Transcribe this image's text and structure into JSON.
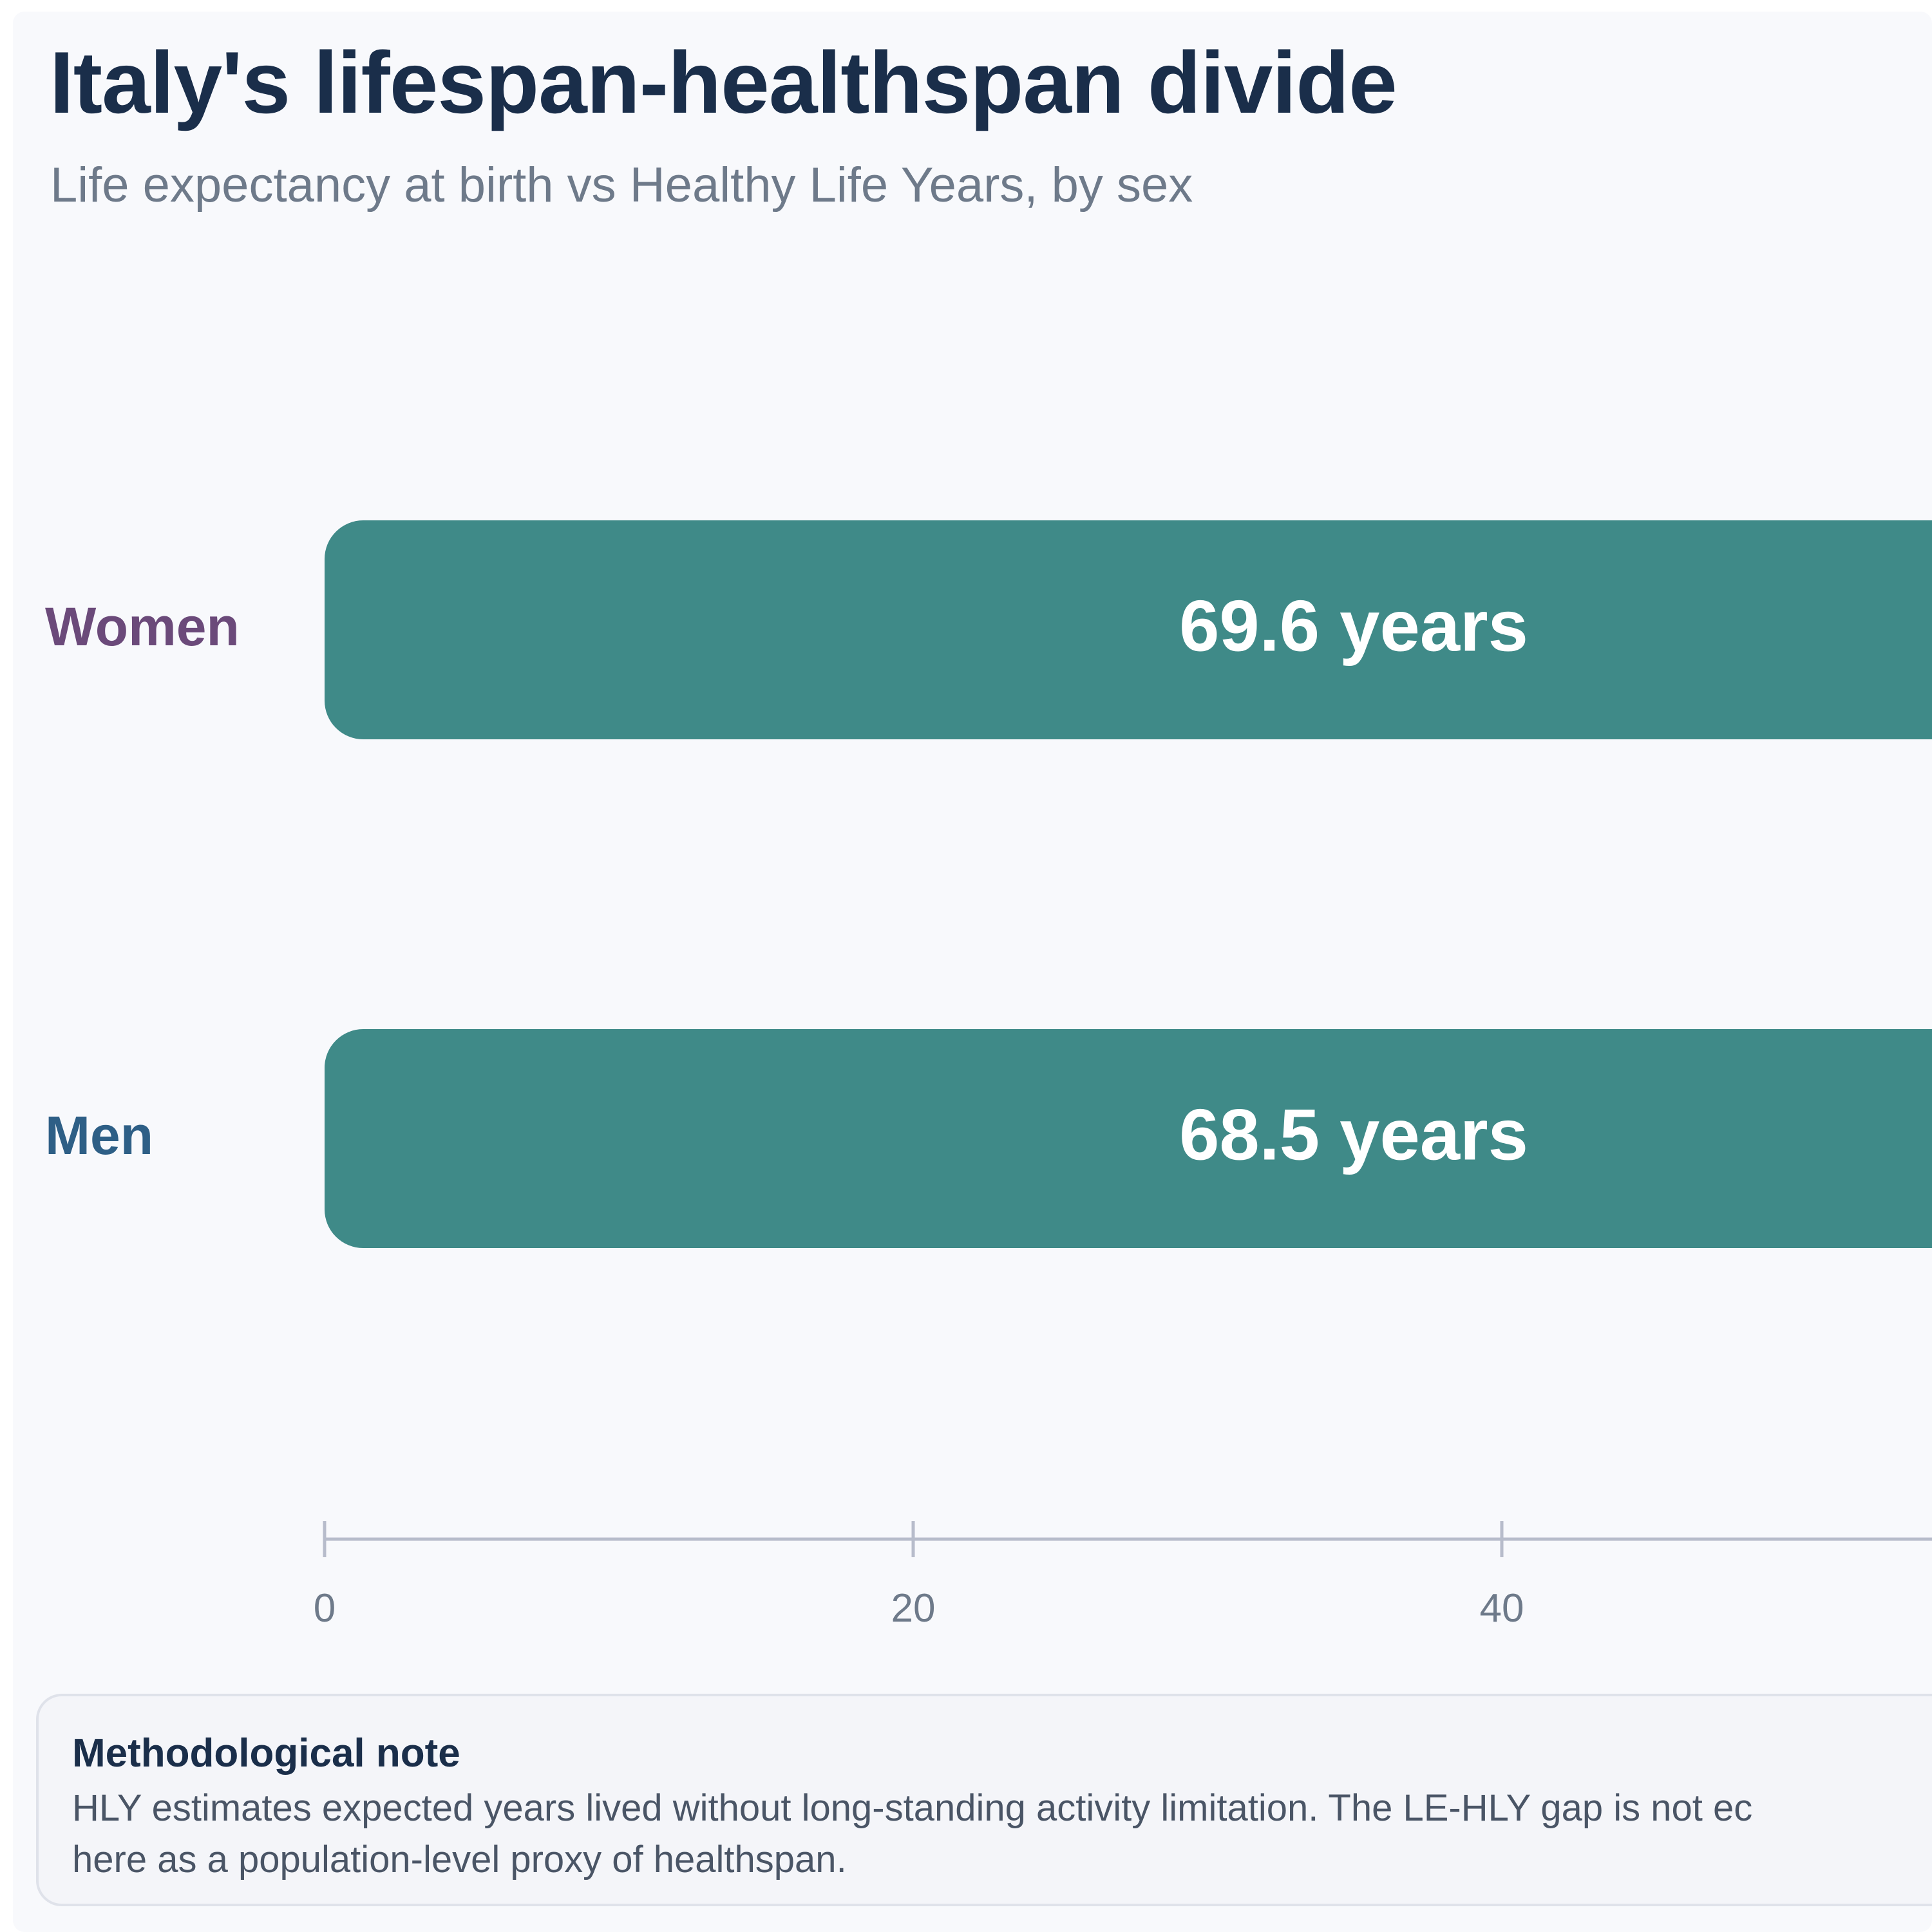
{
  "header": {
    "title": "Italy's lifespan-healthspan divide",
    "subtitle": "Life expectancy at birth vs Healthy Life Years, by sex"
  },
  "chart_data": {
    "type": "bar",
    "orientation": "horizontal",
    "title": "Italy's lifespan-healthspan divide",
    "subtitle": "Life expectancy at birth vs Healthy Life Years, by sex",
    "categories": [
      "Women",
      "Men"
    ],
    "category_colors": [
      "#6b4a7a",
      "#2e5f86"
    ],
    "series": [
      {
        "values": [
          69.6,
          68.5
        ],
        "value_labels": [
          "69.6 years",
          "68.5 years"
        ],
        "color": "#3f8a88"
      }
    ],
    "x_ticks": [
      0,
      20,
      40
    ],
    "xlabel": "",
    "ylabel": "",
    "grid": false
  },
  "note": {
    "title": "Methodological note",
    "body": "HLY estimates expected years lived without long-standing activity limitation. The LE-HLY gap is not e­ here as a population-level proxy of healthspan.",
    "body_line1": "HLY estimates expected years lived without long-standing activity limitation. The LE-HLY gap is not ec",
    "body_line2": "here as a population-level proxy of healthspan."
  }
}
